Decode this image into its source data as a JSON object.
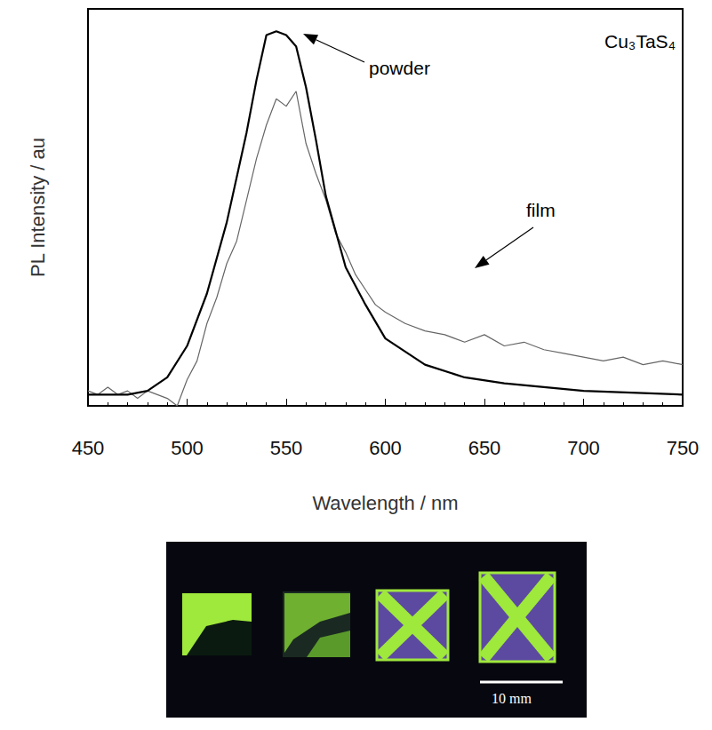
{
  "chart_data": {
    "type": "line",
    "x_label": "Wavelength / nm",
    "y_label": "PL Intensity / au",
    "annotations": [
      "Cu₃TaS₄"
    ],
    "xlim": [
      450,
      750
    ],
    "xticks": [
      450,
      500,
      550,
      600,
      650,
      700,
      750
    ],
    "ylim": [
      0,
      1.06
    ],
    "tick_labels": "x",
    "grid": false,
    "series": [
      {
        "name": "powder",
        "color": "#000000",
        "line_style": "solid",
        "x": [
          450,
          470,
          480,
          490,
          500,
          510,
          520,
          530,
          535,
          540,
          545,
          550,
          555,
          560,
          565,
          570,
          580,
          590,
          600,
          620,
          640,
          660,
          700,
          750
        ],
        "values": [
          0.03,
          0.03,
          0.04,
          0.076,
          0.16,
          0.3,
          0.49,
          0.73,
          0.87,
          0.99,
          1.0,
          0.99,
          0.96,
          0.85,
          0.71,
          0.56,
          0.37,
          0.27,
          0.18,
          0.11,
          0.076,
          0.06,
          0.04,
          0.03
        ]
      },
      {
        "name": "film",
        "color": "#666666",
        "line_style": "solid",
        "x": [
          450,
          455,
          460,
          465,
          470,
          475,
          480,
          485,
          490,
          495,
          500,
          505,
          510,
          515,
          520,
          525,
          530,
          535,
          540,
          545,
          550,
          555,
          560,
          565,
          570,
          575,
          580,
          585,
          590,
          595,
          600,
          610,
          620,
          630,
          640,
          650,
          660,
          670,
          680,
          690,
          700,
          710,
          720,
          730,
          740,
          750
        ],
        "values": [
          0.04,
          0.03,
          0.05,
          0.03,
          0.04,
          0.02,
          0.04,
          0.03,
          0.02,
          0.0,
          0.07,
          0.12,
          0.22,
          0.29,
          0.38,
          0.44,
          0.55,
          0.66,
          0.75,
          0.82,
          0.8,
          0.84,
          0.7,
          0.62,
          0.55,
          0.46,
          0.41,
          0.35,
          0.31,
          0.27,
          0.25,
          0.22,
          0.2,
          0.19,
          0.17,
          0.19,
          0.16,
          0.17,
          0.15,
          0.14,
          0.13,
          0.12,
          0.13,
          0.11,
          0.12,
          0.11
        ]
      }
    ]
  },
  "photo": {
    "scale_bar_label": "10 mm"
  }
}
